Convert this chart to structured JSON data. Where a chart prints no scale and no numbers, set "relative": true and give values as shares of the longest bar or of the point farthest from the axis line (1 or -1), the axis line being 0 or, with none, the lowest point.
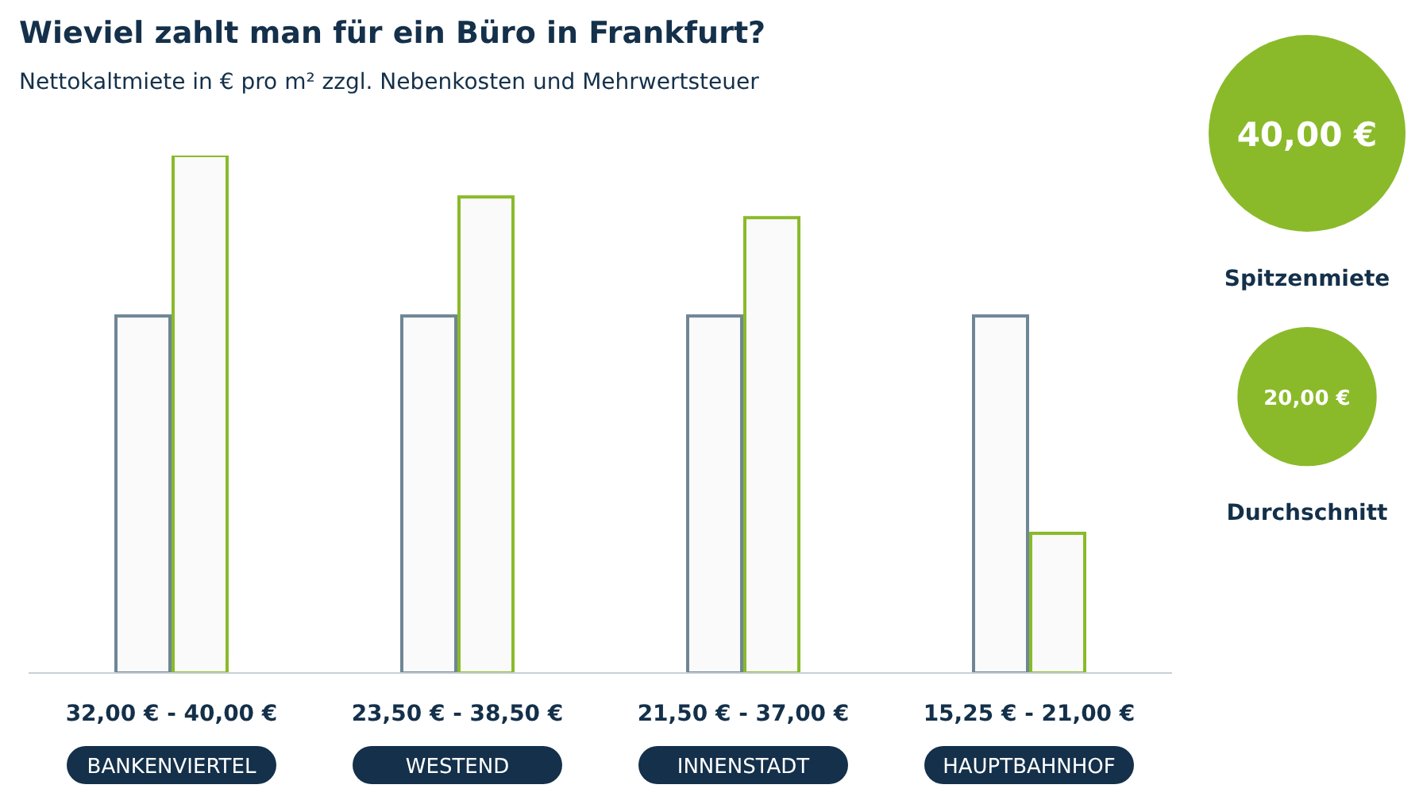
{
  "chart_data": [
    {
      "type": "bar",
      "title": "Wieviel zahlt man für ein Büro in Frankfurt?",
      "subtitle": "Nettokaltmiete in € pro m² zzgl. Nebenkosten und Mehrwertsteuer",
      "relative": true,
      "categories": [
        "BANKENVIERTEL",
        "WESTEND",
        "INNENSTADT",
        "HAUPTBAHNHOF"
      ],
      "series": [
        {
          "color": "#6f8694",
          "values": [
            0.69,
            0.69,
            0.69,
            0.69
          ]
        },
        {
          "color": "#8aba2a",
          "values": [
            1,
            0.92,
            0.88,
            0.27
          ]
        }
      ],
      "annotations": [
        "32,00 € - 40,00 €",
        "23,50 € - 38,50 €",
        "21,50 € - 37,00 €",
        "15,25 € - 21,00 €"
      ]
    },
    {
      "type": "other",
      "categories": [
        "Spitzenmiete",
        "Durchschnitt"
      ],
      "values": [
        40,
        20
      ],
      "value_labels": [
        "40,00 €",
        "20,00 €"
      ],
      "color": "#8aba2a"
    }
  ]
}
